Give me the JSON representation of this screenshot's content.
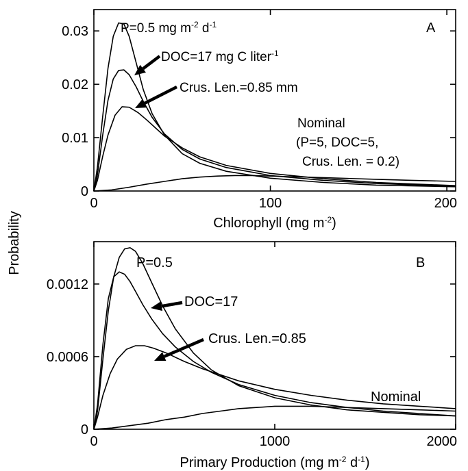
{
  "figure": {
    "ylabel": "Probability"
  },
  "chart_data": [
    {
      "panel": "A",
      "type": "line",
      "xlabel": "Chlorophyll (mg m",
      "xlabel_sup": "-2",
      "xlabel_end": ")",
      "xlim": [
        0,
        205
      ],
      "ylim": [
        0,
        0.034
      ],
      "xticks": [
        0,
        100,
        200
      ],
      "yticks": [
        0,
        0.01,
        0.02,
        0.03
      ],
      "xtick_labels": [
        "0",
        "100",
        "200"
      ],
      "ytick_labels": [
        "0",
        "0.01",
        "0.02",
        "0.03"
      ],
      "annotations": {
        "p": {
          "pre": "P=0.5 mg m",
          "sup1": "-2",
          "mid": " d",
          "sup2": "-1",
          "post": ""
        },
        "doc": {
          "pre": "DOC=17 mg C liter",
          "sup1": "-1",
          "mid": "",
          "sup2": "",
          "post": ""
        },
        "crus": {
          "pre": "Crus. Len.=0.85 mm",
          "sup1": "",
          "mid": "",
          "sup2": "",
          "post": ""
        },
        "nominal": {
          "pre": "Nominal",
          "sup1": "",
          "mid": "",
          "sup2": "",
          "post": ""
        },
        "nominal2": {
          "pre": "(P=5, DOC=5,",
          "sup1": "",
          "mid": "",
          "sup2": "",
          "post": ""
        },
        "nominal3": {
          "pre": "Crus. Len. = 0.2)",
          "sup1": "",
          "mid": "",
          "sup2": "",
          "post": ""
        }
      },
      "series": [
        {
          "x": [
            0,
            2,
            5,
            8,
            11,
            14,
            17,
            20,
            24,
            28,
            33,
            40,
            50,
            60,
            75,
            100,
            130,
            160,
            205
          ],
          "y": [
            0,
            0.0045,
            0.014,
            0.023,
            0.029,
            0.0315,
            0.0313,
            0.029,
            0.024,
            0.019,
            0.0145,
            0.0105,
            0.007,
            0.0052,
            0.0037,
            0.0024,
            0.0016,
            0.0011,
            0.0008
          ]
        },
        {
          "x": [
            0,
            2,
            5,
            8,
            11,
            14,
            17,
            20,
            24,
            28,
            33,
            40,
            50,
            60,
            75,
            100,
            130,
            160,
            205
          ],
          "y": [
            0,
            0.003,
            0.0105,
            0.017,
            0.021,
            0.0226,
            0.0227,
            0.0218,
            0.0195,
            0.0168,
            0.0138,
            0.0107,
            0.0078,
            0.006,
            0.0044,
            0.0029,
            0.002,
            0.0014,
            0.0009
          ]
        },
        {
          "x": [
            0,
            2,
            5,
            8,
            12,
            16,
            20,
            25,
            30,
            35,
            40,
            50,
            60,
            75,
            100,
            130,
            160,
            205
          ],
          "y": [
            0,
            0.002,
            0.0065,
            0.0105,
            0.0142,
            0.0158,
            0.0157,
            0.0147,
            0.0133,
            0.0118,
            0.0103,
            0.0081,
            0.0064,
            0.0048,
            0.0033,
            0.0023,
            0.0016,
            0.001
          ]
        },
        {
          "x": [
            0,
            10,
            20,
            30,
            40,
            50,
            60,
            70,
            80,
            90,
            100,
            110,
            120,
            140,
            160,
            180,
            205
          ],
          "y": [
            0,
            0.0002,
            0.0007,
            0.0013,
            0.0018,
            0.0023,
            0.0026,
            0.0028,
            0.0029,
            0.0029,
            0.0028,
            0.0027,
            0.0026,
            0.0024,
            0.0022,
            0.002,
            0.0018
          ]
        }
      ]
    },
    {
      "panel": "B",
      "type": "line",
      "xlabel": "Primary Production (mg m",
      "xlabel_sup": "-2",
      "xlabel_mid": " d",
      "xlabel_sup2": "-1",
      "xlabel_end": ")",
      "xlim": [
        0,
        2000
      ],
      "ylim": [
        0,
        0.00155
      ],
      "xticks": [
        0,
        1000,
        2000
      ],
      "yticks": [
        0,
        0.0006,
        0.0012
      ],
      "xtick_labels": [
        "0",
        "1000",
        "2000"
      ],
      "ytick_labels": [
        "0",
        "0.0006",
        "0.0012"
      ],
      "annotations": {
        "p": {
          "pre": "P=0.5",
          "sup1": "",
          "mid": "",
          "sup2": "",
          "post": ""
        },
        "doc": {
          "pre": "DOC=17",
          "sup1": "",
          "mid": "",
          "sup2": "",
          "post": ""
        },
        "crus": {
          "pre": "Crus. Len.=0.85",
          "sup1": "",
          "mid": "",
          "sup2": "",
          "post": ""
        },
        "nominal": {
          "pre": "Nominal",
          "sup1": "",
          "mid": "",
          "sup2": "",
          "post": ""
        }
      },
      "series": [
        {
          "x": [
            0,
            20,
            50,
            80,
            110,
            140,
            170,
            200,
            230,
            270,
            320,
            380,
            450,
            550,
            650,
            800,
            1000,
            1200,
            1400,
            1600,
            1800,
            2000
          ],
          "y": [
            0,
            0.00015,
            0.00058,
            0.00098,
            0.00126,
            0.00142,
            0.00149,
            0.0015,
            0.00147,
            0.00137,
            0.00121,
            0.00102,
            0.00083,
            0.00063,
            0.00049,
            0.00036,
            0.00026,
            0.0002,
            0.00016,
            0.00014,
            0.00012,
            0.00011
          ]
        },
        {
          "x": [
            0,
            20,
            50,
            80,
            110,
            140,
            170,
            200,
            230,
            270,
            320,
            380,
            450,
            550,
            650,
            800,
            1000,
            1200,
            1400,
            1600,
            1800,
            2000
          ],
          "y": [
            0,
            0.0002,
            0.0007,
            0.00108,
            0.00126,
            0.0013,
            0.00128,
            0.00122,
            0.00114,
            0.00103,
            0.00091,
            0.00079,
            0.00068,
            0.00056,
            0.00047,
            0.00037,
            0.00028,
            0.00022,
            0.00018,
            0.00015,
            0.00013,
            0.00011
          ]
        },
        {
          "x": [
            0,
            20,
            50,
            90,
            130,
            180,
            230,
            280,
            330,
            400,
            500,
            600,
            700,
            800,
            1000,
            1200,
            1400,
            1600,
            1800,
            2000
          ],
          "y": [
            0,
            0.0001,
            0.00028,
            0.00046,
            0.00058,
            0.00066,
            0.00069,
            0.00069,
            0.00067,
            0.00063,
            0.00056,
            0.0005,
            0.00045,
            0.0004,
            0.00033,
            0.00028,
            0.00024,
            0.00021,
            0.00019,
            0.00017
          ]
        },
        {
          "x": [
            0,
            100,
            200,
            300,
            400,
            500,
            600,
            700,
            800,
            900,
            1000,
            1100,
            1200,
            1400,
            1600,
            1800,
            2000
          ],
          "y": [
            0,
            1e-05,
            3e-05,
            5e-05,
            8e-05,
            0.0001,
            0.00013,
            0.00015,
            0.00017,
            0.00018,
            0.00019,
            0.00019,
            0.00019,
            0.00018,
            0.00017,
            0.00016,
            0.00015
          ]
        }
      ]
    }
  ]
}
